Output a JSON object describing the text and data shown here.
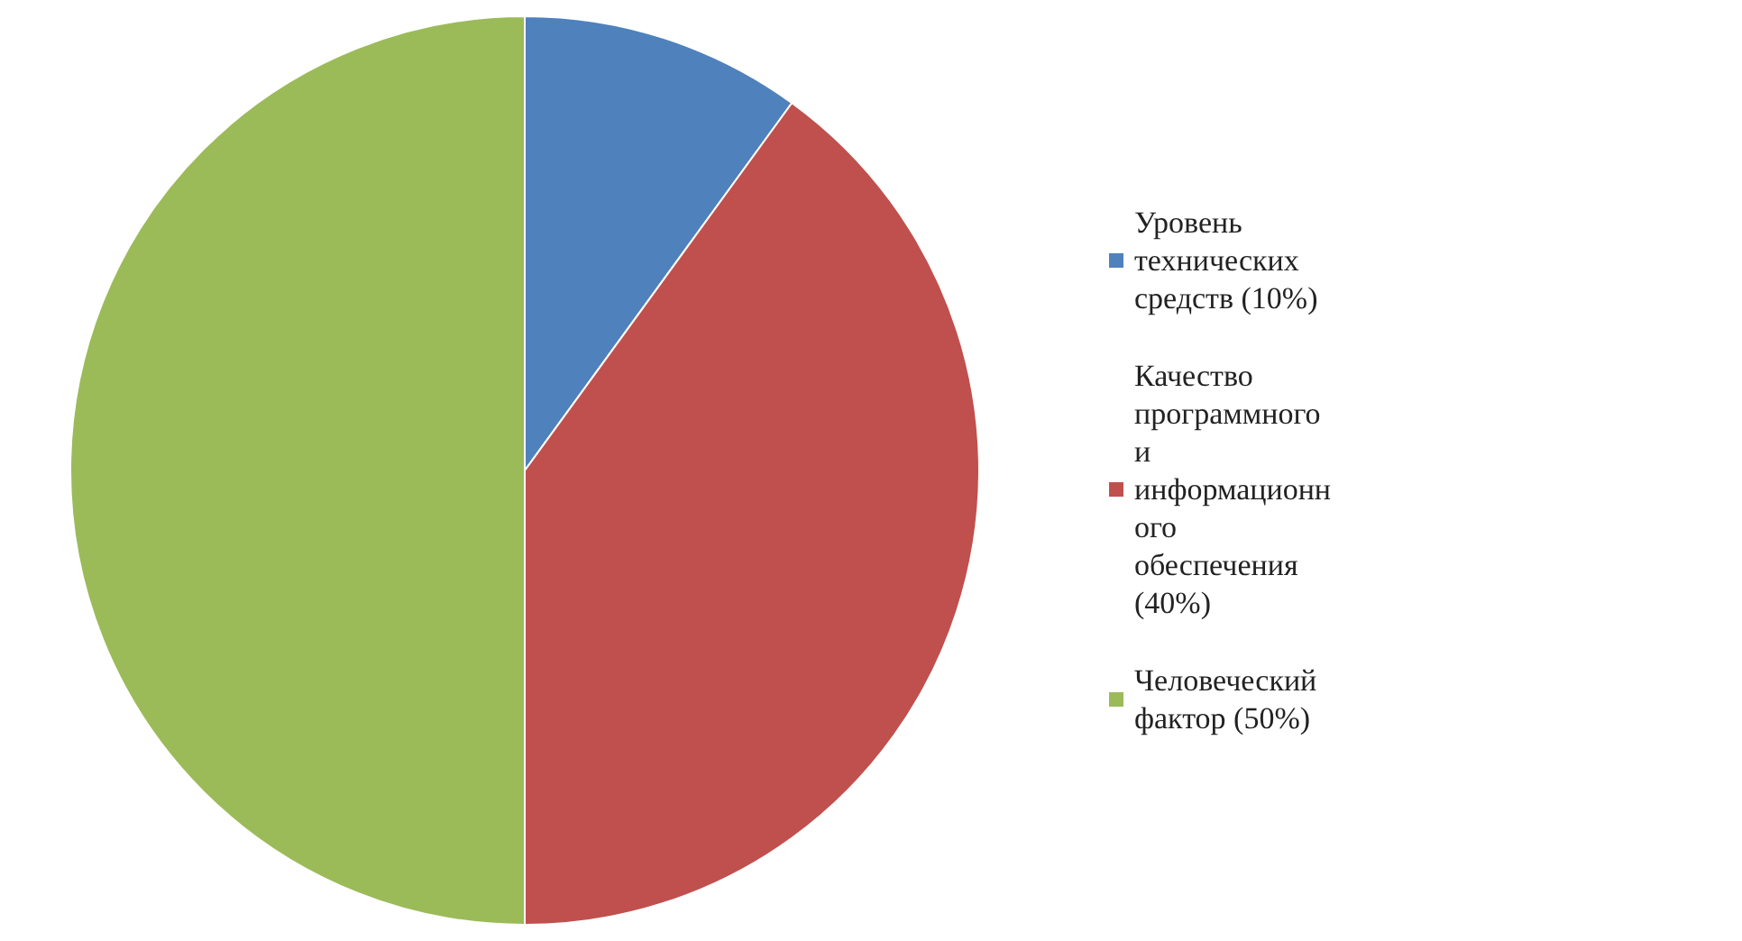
{
  "chart_data": {
    "type": "pie",
    "categories": [
      "Уровень технических средств (10%)",
      "Качество программного и информационного обеспечения (40%)",
      "Человеческий фактор (50%)"
    ],
    "values": [
      10,
      40,
      50
    ],
    "colors": [
      "#4f81bd",
      "#c0504d",
      "#9bbb59"
    ],
    "legend": "right"
  }
}
